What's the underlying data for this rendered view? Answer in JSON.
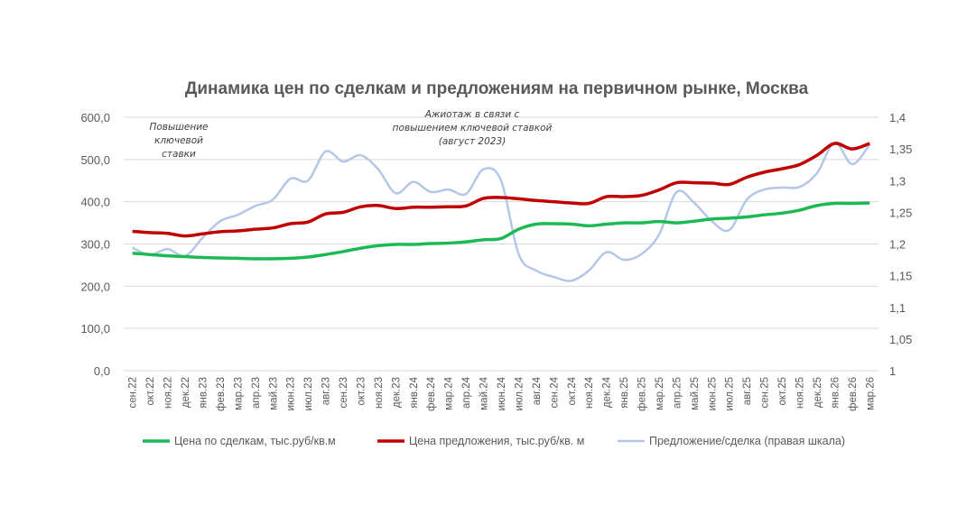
{
  "chart_data": {
    "type": "line",
    "title": "Динамика цен по сделкам и предложениям на первичном рынке, Москва",
    "categories": [
      "сен.22",
      "окт.22",
      "ноя.22",
      "дек.22",
      "янв.23",
      "фев.23",
      "мар.23",
      "апр.23",
      "май.23",
      "июн.23",
      "июл.23",
      "авг.23",
      "сен.23",
      "окт.23",
      "ноя.23",
      "дек.23",
      "янв.24",
      "фев.24",
      "мар.24",
      "апр.24",
      "май.24",
      "июн.24",
      "июл.24",
      "авг.24",
      "сен.24",
      "окт.24",
      "ноя.24",
      "дек.24",
      "янв.25",
      "фев.25",
      "мар.25",
      "апр.25",
      "май.25",
      "июн.25",
      "июл.25",
      "авг.25",
      "сен.25",
      "окт.25",
      "ноя.25",
      "дек.25",
      "янв.26",
      "фев.26",
      "мар.26"
    ],
    "y_left": {
      "ylim": [
        0,
        600
      ],
      "ticks": [
        "0,0",
        "100,0",
        "200,0",
        "300,0",
        "400,0",
        "500,0",
        "600,0"
      ]
    },
    "y_right": {
      "ylim": [
        1,
        1.4
      ],
      "ticks": [
        "1",
        "1,05",
        "1,1",
        "1,15",
        "1,2",
        "1,25",
        "1,3",
        "1,35",
        "1,4"
      ]
    },
    "grid": true,
    "legend_position": "bottom",
    "series": [
      {
        "name": "Цена по сделкам, тыс.руб/кв.м",
        "axis": "left",
        "color": "#1db954",
        "values": [
          278,
          275,
          272,
          270,
          268,
          267,
          266,
          265,
          265,
          266,
          269,
          275,
          282,
          290,
          296,
          299,
          299,
          301,
          302,
          305,
          310,
          313,
          335,
          347,
          348,
          347,
          343,
          347,
          350,
          350,
          353,
          350,
          354,
          359,
          361,
          364,
          369,
          373,
          380,
          391,
          396,
          396,
          397
        ]
      },
      {
        "name": "Цена предложения, тыс.руб/кв. м",
        "axis": "left",
        "color": "#c00000",
        "values": [
          330,
          327,
          325,
          319,
          324,
          329,
          331,
          335,
          338,
          348,
          352,
          371,
          375,
          388,
          391,
          384,
          387,
          387,
          388,
          390,
          408,
          410,
          407,
          403,
          400,
          397,
          396,
          412,
          412,
          415,
          428,
          445,
          445,
          444,
          441,
          458,
          470,
          478,
          488,
          510,
          538,
          525,
          538
        ]
      },
      {
        "name": "Предложение/сделка (правая шкала)",
        "axis": "right",
        "color": "#b4c7e7",
        "values": [
          1.194,
          1.183,
          1.192,
          1.181,
          1.21,
          1.236,
          1.246,
          1.26,
          1.27,
          1.303,
          1.3,
          1.346,
          1.33,
          1.34,
          1.318,
          1.28,
          1.298,
          1.282,
          1.286,
          1.279,
          1.318,
          1.3,
          1.184,
          1.158,
          1.148,
          1.142,
          1.158,
          1.187,
          1.175,
          1.184,
          1.215,
          1.282,
          1.265,
          1.236,
          1.222,
          1.27,
          1.286,
          1.289,
          1.29,
          1.312,
          1.36,
          1.326,
          1.357
        ]
      }
    ],
    "annotations": [
      {
        "lines": [
          "Повышение",
          "ключевой",
          "ставки"
        ]
      },
      {
        "lines": [
          "Ажиотаж в связи с",
          "повышением ключевой ставкой",
          "(август 2023)"
        ]
      }
    ]
  }
}
